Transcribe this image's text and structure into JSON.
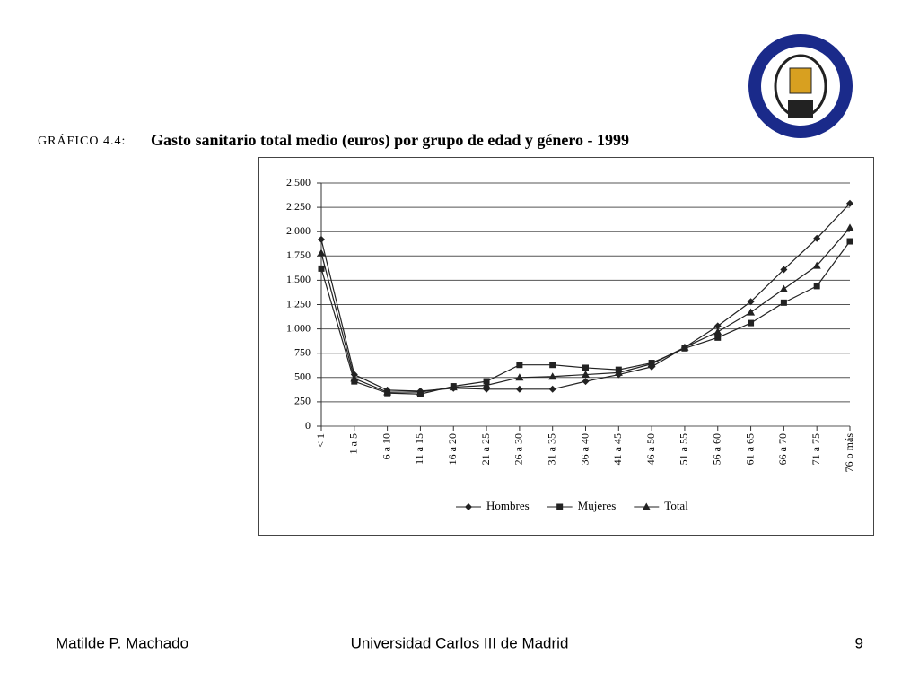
{
  "chart_data": {
    "type": "line",
    "figure_label": "GRÁFICO 4.4:",
    "title": "Gasto sanitario total medio (euros) por grupo de edad y género - 1999",
    "categories": [
      "< 1",
      "1 a 5",
      "6 a 10",
      "11 a 15",
      "16 a 20",
      "21 a 25",
      "26 a 30",
      "31 a 35",
      "36 a 40",
      "41 a 45",
      "46 a 50",
      "51 a 55",
      "56 a 60",
      "61 a 65",
      "66 a 70",
      "71 a 75",
      "76 o más"
    ],
    "series": [
      {
        "name": "Hombres",
        "color": "#222222",
        "marker": "diamond",
        "values": [
          1920,
          530,
          370,
          360,
          390,
          380,
          380,
          380,
          460,
          530,
          610,
          810,
          1030,
          1280,
          1610,
          1930,
          2290
        ]
      },
      {
        "name": "Mujeres",
        "color": "#222222",
        "marker": "square",
        "values": [
          1620,
          460,
          340,
          330,
          410,
          460,
          630,
          630,
          600,
          580,
          650,
          800,
          910,
          1060,
          1270,
          1440,
          1900
        ]
      },
      {
        "name": "Total",
        "color": "#222222",
        "marker": "triangle",
        "values": [
          1780,
          490,
          350,
          350,
          400,
          420,
          500,
          510,
          530,
          550,
          640,
          810,
          970,
          1170,
          1410,
          1650,
          2040
        ]
      }
    ],
    "ylim": [
      0,
      2500
    ],
    "yticks": [
      0,
      250,
      500,
      750,
      {
        "value": 1000,
        "label": "1.000"
      },
      {
        "value": 1250,
        "label": "1.250"
      },
      {
        "value": 1500,
        "label": "1.500"
      },
      {
        "value": 1750,
        "label": "1.750"
      },
      {
        "value": 2000,
        "label": "2.000"
      },
      {
        "value": 2250,
        "label": "2.250"
      },
      {
        "value": 2500,
        "label": "2.500"
      }
    ],
    "grid": true,
    "legend": "bottom"
  },
  "footer": {
    "author": "Matilde P. Machado",
    "institution": "Universidad Carlos III de Madrid",
    "page": "9"
  }
}
